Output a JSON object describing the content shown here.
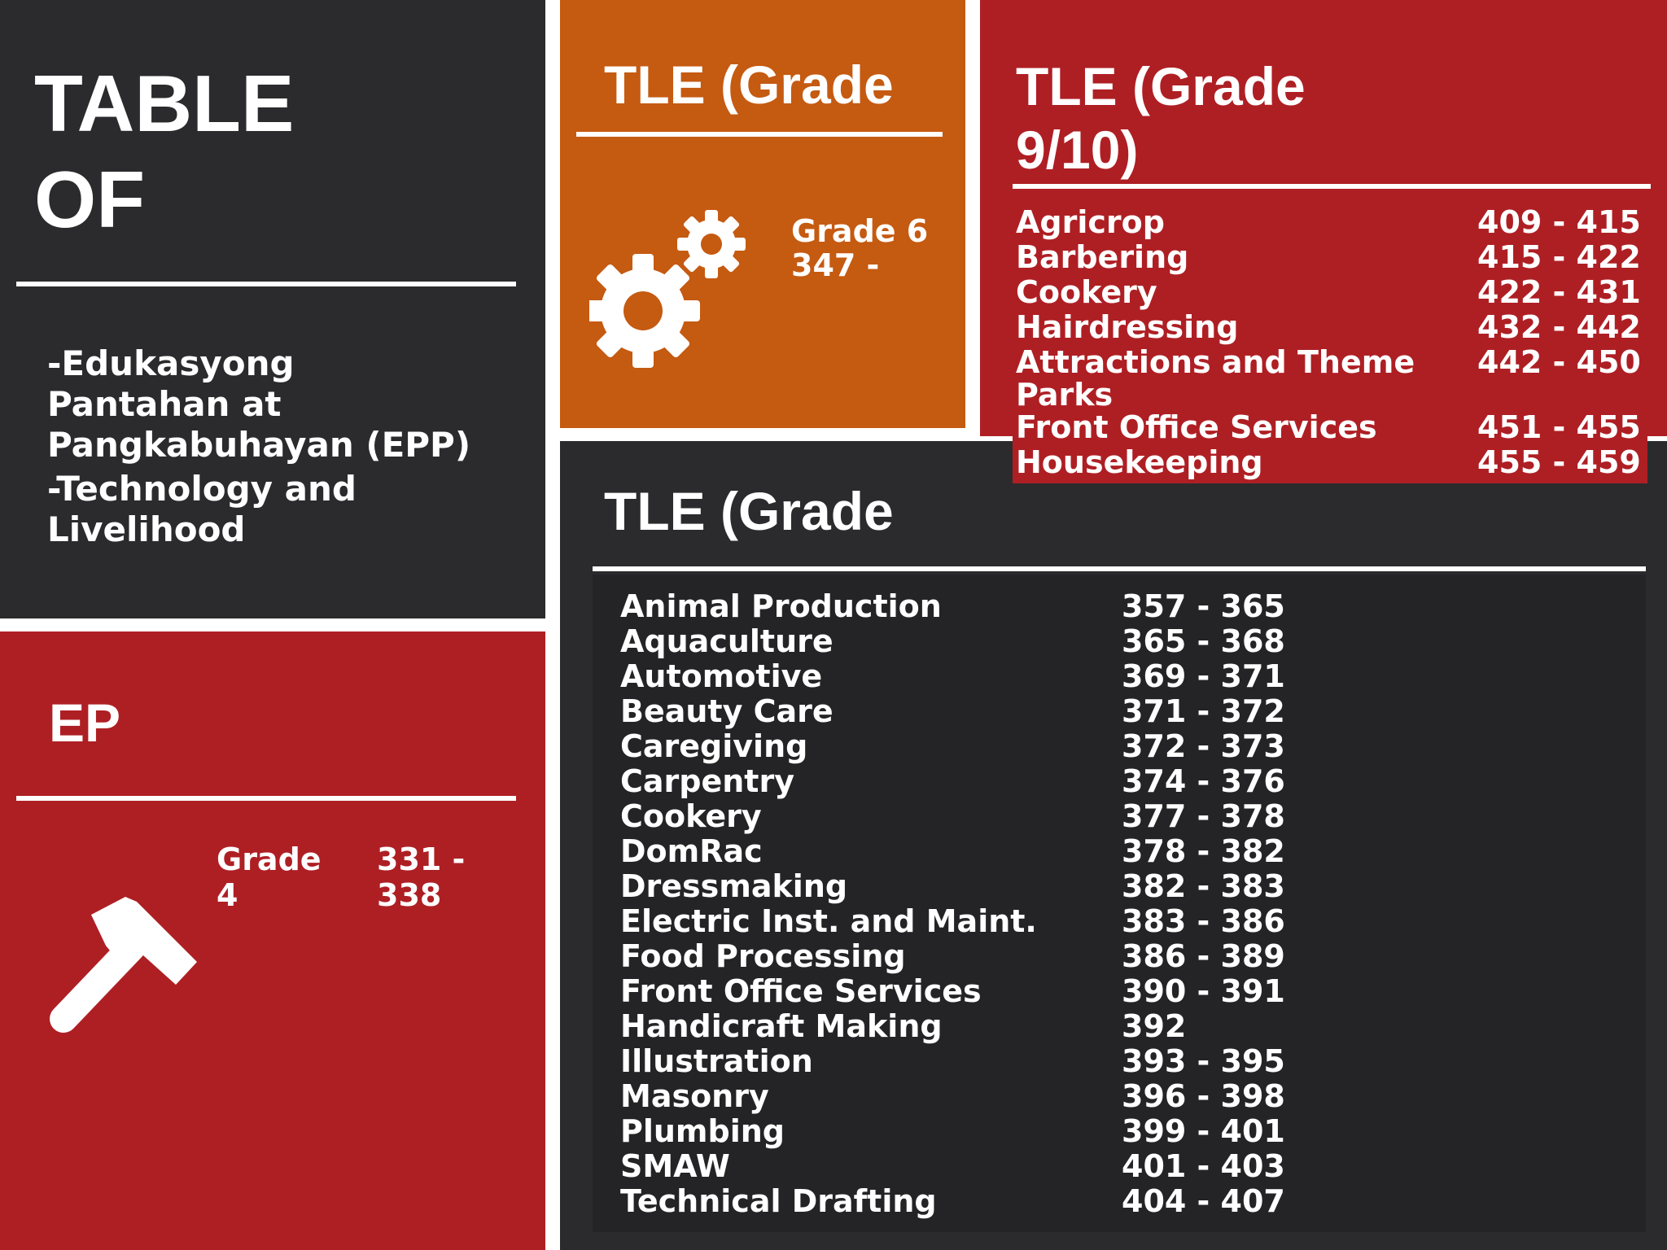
{
  "toc": {
    "title_line1": "TABLE",
    "title_line2": "OF",
    "items": [
      "-Edukasyong",
      "Pantahan at",
      "Pangkabuhayan (EPP)",
      "-Technology and",
      "Livelihood"
    ]
  },
  "ep": {
    "title": "EP",
    "grade_line1": "Grade",
    "grade_line2": "4",
    "pages_line1": "331 -",
    "pages_line2": "338",
    "icon": "hammer-icon"
  },
  "tle6": {
    "title": "TLE (Grade",
    "grade": "Grade 6",
    "pages": "347 -",
    "icon": "gears-icon"
  },
  "tle910": {
    "title_line1": "TLE (Grade",
    "title_line2": "9/10)",
    "rows": [
      {
        "name": "Agricrop",
        "pages": "409 - 415"
      },
      {
        "name": "Barbering",
        "pages": "415 - 422"
      },
      {
        "name": "Cookery",
        "pages": "422 - 431"
      },
      {
        "name": "Hairdressing",
        "pages": "432 - 442"
      },
      {
        "name": "Attractions and Theme",
        "name2": "Parks",
        "pages": "442 - 450"
      },
      {
        "name": "Front Office Services",
        "pages": "451 - 455"
      },
      {
        "name": "Housekeeping",
        "pages": "455 - 459"
      }
    ]
  },
  "tle78": {
    "title": "TLE (Grade",
    "rows": [
      {
        "name": "Animal Production",
        "pages": "357 - 365"
      },
      {
        "name": "Aquaculture",
        "pages": "365 - 368"
      },
      {
        "name": "Automotive",
        "pages": "369 - 371"
      },
      {
        "name": "Beauty Care",
        "pages": "371 - 372"
      },
      {
        "name": "Caregiving",
        "pages": "372 - 373"
      },
      {
        "name": "Carpentry",
        "pages": "374 - 376"
      },
      {
        "name": "Cookery",
        "pages": "377 - 378"
      },
      {
        "name": "DomRac",
        "pages": "378 - 382"
      },
      {
        "name": "Dressmaking",
        "pages": "382 - 383"
      },
      {
        "name": "Electric Inst. and Maint.",
        "pages": "383 - 386"
      },
      {
        "name": "Food Processing",
        "pages": "386 - 389"
      },
      {
        "name": "Front Office Services",
        "pages": "390 - 391"
      },
      {
        "name": "Handicraft Making",
        "pages": "392"
      },
      {
        "name": "Illustration",
        "pages": "393 - 395"
      },
      {
        "name": "Masonry",
        "pages": "396 - 398"
      },
      {
        "name": "Plumbing",
        "pages": "399 - 401"
      },
      {
        "name": "SMAW",
        "pages": "401 - 403"
      },
      {
        "name": "Technical Drafting",
        "pages": "404 - 407"
      }
    ]
  },
  "colors": {
    "dark": "#2b2b2d",
    "red": "#ae1f24",
    "orange": "#c55a11",
    "text": "#ffffff"
  }
}
